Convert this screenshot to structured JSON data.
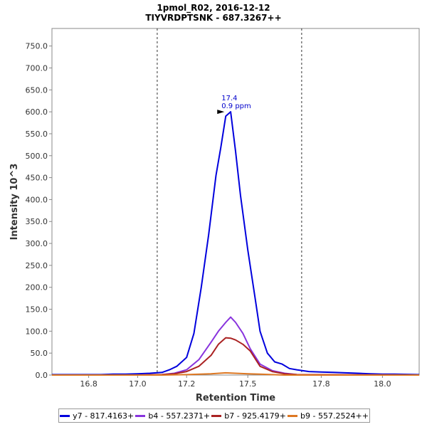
{
  "chart_data": {
    "type": "line",
    "title": "1pmol_R02, 2016-12-12",
    "subtitle": "TIYVRDPTSNK - 687.3267++",
    "xlabel": "Retention Time",
    "ylabel": "Intensity 10^3",
    "xlim": [
      16.65,
      18.15
    ],
    "ylim": [
      0,
      790
    ],
    "x_ticks": [
      "16.8",
      "17.0",
      "17.2",
      "17.5",
      "17.8",
      "18.0"
    ],
    "x_tick_values": [
      16.8,
      17.0,
      17.2,
      17.45,
      17.75,
      18.0
    ],
    "y_ticks": [
      "0.0",
      "50.0",
      "100.0",
      "150.0",
      "200.0",
      "250.0",
      "300.0",
      "350.0",
      "400.0",
      "450.0",
      "500.0",
      "550.0",
      "600.0",
      "650.0",
      "700.0",
      "750.0"
    ],
    "y_tick_values": [
      0,
      50,
      100,
      150,
      200,
      250,
      300,
      350,
      400,
      450,
      500,
      550,
      600,
      650,
      700,
      750
    ],
    "vlines": [
      17.08,
      17.67
    ],
    "annotation": {
      "x": 17.36,
      "y": 600,
      "label1": "17.4",
      "label2": "0.9 ppm"
    },
    "legend_position": "bottom",
    "grid": false,
    "series": [
      {
        "name": "y7 - 817.4163+",
        "color": "#0000dd",
        "x": [
          16.65,
          16.75,
          16.85,
          16.9,
          16.95,
          17.0,
          17.05,
          17.1,
          17.13,
          17.16,
          17.2,
          17.23,
          17.26,
          17.29,
          17.32,
          17.34,
          17.36,
          17.38,
          17.4,
          17.42,
          17.45,
          17.48,
          17.5,
          17.53,
          17.56,
          17.59,
          17.62,
          17.65,
          17.7,
          17.75,
          17.8,
          17.9,
          17.95,
          18.0,
          18.05,
          18.15
        ],
        "values": [
          1,
          1,
          1,
          2,
          2,
          3,
          4,
          6,
          12,
          20,
          40,
          95,
          200,
          320,
          455,
          520,
          590,
          600,
          510,
          410,
          285,
          175,
          100,
          50,
          30,
          25,
          15,
          12,
          8,
          7,
          6,
          4,
          3,
          2,
          2,
          1
        ]
      },
      {
        "name": "b4 - 557.2371+",
        "color": "#8833dd",
        "x": [
          16.65,
          17.0,
          17.1,
          17.15,
          17.2,
          17.25,
          17.3,
          17.33,
          17.36,
          17.38,
          17.4,
          17.43,
          17.46,
          17.5,
          17.55,
          17.6,
          17.65,
          18.15
        ],
        "values": [
          0,
          0,
          1,
          4,
          12,
          35,
          75,
          100,
          120,
          132,
          120,
          95,
          60,
          25,
          10,
          4,
          1,
          0
        ]
      },
      {
        "name": "b7 - 925.4179+",
        "color": "#aa2222",
        "x": [
          16.65,
          17.0,
          17.1,
          17.15,
          17.2,
          17.25,
          17.3,
          17.33,
          17.36,
          17.38,
          17.4,
          17.43,
          17.46,
          17.5,
          17.55,
          17.6,
          17.65,
          18.15
        ],
        "values": [
          0,
          0,
          1,
          3,
          8,
          20,
          45,
          70,
          85,
          84,
          80,
          70,
          55,
          20,
          8,
          3,
          1,
          0
        ]
      },
      {
        "name": "b9 - 557.2524++",
        "color": "#dd7722",
        "x": [
          16.65,
          17.0,
          17.1,
          17.2,
          17.3,
          17.36,
          17.4,
          17.45,
          17.5,
          17.55,
          17.6,
          18.15
        ],
        "values": [
          0,
          0,
          0,
          1,
          3,
          5,
          4,
          3,
          2,
          1,
          0,
          0
        ]
      }
    ]
  }
}
